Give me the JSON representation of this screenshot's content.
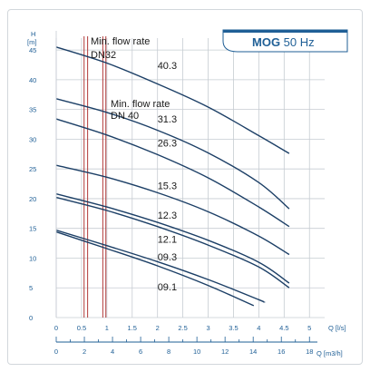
{
  "badge": {
    "bold": "MOG",
    "rest": " 50 Hz"
  },
  "colors": {
    "accent": "#1f5f96",
    "curve": "#1c3f66",
    "grid": "#c6ccd2",
    "minflow": "#b03a3a"
  },
  "chart_data": {
    "type": "line",
    "title": "",
    "ylabel_top": "H",
    "ylabel_unit": "[m]",
    "xlabel": "Q [l/s]",
    "xlabel2": "Q [m3/h]",
    "xlim": [
      0,
      5.3
    ],
    "ylim": [
      0,
      47
    ],
    "x_ticks": [
      "0",
      "0.5",
      "1",
      "1.5",
      "2",
      "2.5",
      "3",
      "3.5",
      "4",
      "4.5",
      "5"
    ],
    "y_ticks": [
      "0",
      "5",
      "10",
      "15",
      "20",
      "25",
      "30",
      "35",
      "40",
      "45"
    ],
    "x2_ticks": [
      "0",
      "2",
      "4",
      "6",
      "8",
      "10",
      "12",
      "14",
      "16",
      "18"
    ],
    "series": [
      {
        "name": "40.3",
        "x": [
          0,
          1,
          2,
          3,
          4,
          4.6
        ],
        "y": [
          45.5,
          42.8,
          39.3,
          35.4,
          30.6,
          27.6
        ]
      },
      {
        "name": "31.3",
        "x": [
          0,
          1,
          2,
          3,
          4,
          4.6
        ],
        "y": [
          36.8,
          34.5,
          31.5,
          27.7,
          22.7,
          18.3
        ]
      },
      {
        "name": "26.3",
        "x": [
          0,
          1,
          2,
          3,
          4,
          4.6
        ],
        "y": [
          33.4,
          30.7,
          27.4,
          23.5,
          18.6,
          15.3
        ]
      },
      {
        "name": "15.3",
        "x": [
          0,
          1,
          2,
          3,
          4,
          4.6
        ],
        "y": [
          25.6,
          23.6,
          21.0,
          17.8,
          13.7,
          10.6
        ]
      },
      {
        "name": "12.3",
        "x": [
          0,
          1,
          2,
          3,
          4,
          4.6
        ],
        "y": [
          20.8,
          18.6,
          16.0,
          13.0,
          9.3,
          5.8
        ]
      },
      {
        "name": "12.1",
        "x": [
          0,
          1,
          2,
          3,
          4,
          4.6
        ],
        "y": [
          20.2,
          18.0,
          15.3,
          12.2,
          8.5,
          5.0
        ]
      },
      {
        "name": "09.3",
        "x": [
          0,
          1,
          2,
          3,
          4,
          4.1
        ],
        "y": [
          14.7,
          12.1,
          9.4,
          6.4,
          3.0,
          2.6
        ]
      },
      {
        "name": "09.1",
        "x": [
          0,
          1,
          2,
          3,
          3.9
        ],
        "y": [
          14.4,
          11.6,
          8.7,
          5.4,
          2.0
        ]
      }
    ],
    "labels": [
      {
        "text": "40.3",
        "x": 2.0,
        "y": 41.8
      },
      {
        "text": "31.3",
        "x": 2.0,
        "y": 32.8
      },
      {
        "text": "26.3",
        "x": 2.0,
        "y": 28.8
      },
      {
        "text": "15.3",
        "x": 2.0,
        "y": 21.6
      },
      {
        "text": "12.3",
        "x": 2.0,
        "y": 16.6
      },
      {
        "text": "12.1",
        "x": 2.0,
        "y": 12.6
      },
      {
        "text": "09.3",
        "x": 2.0,
        "y": 9.6
      },
      {
        "text": "09.1",
        "x": 2.0,
        "y": 4.6
      }
    ],
    "min_flow": [
      {
        "name": "Min. flow rate DN32",
        "line1": "Min. flow rate",
        "line2": "DN32",
        "lines_x": [
          0.55,
          0.62
        ]
      },
      {
        "name": "Min. flow rate DN 40",
        "line1": "Min. flow rate",
        "line2": "DN 40",
        "lines_x": [
          0.92,
          0.98
        ]
      }
    ],
    "grid": true
  }
}
